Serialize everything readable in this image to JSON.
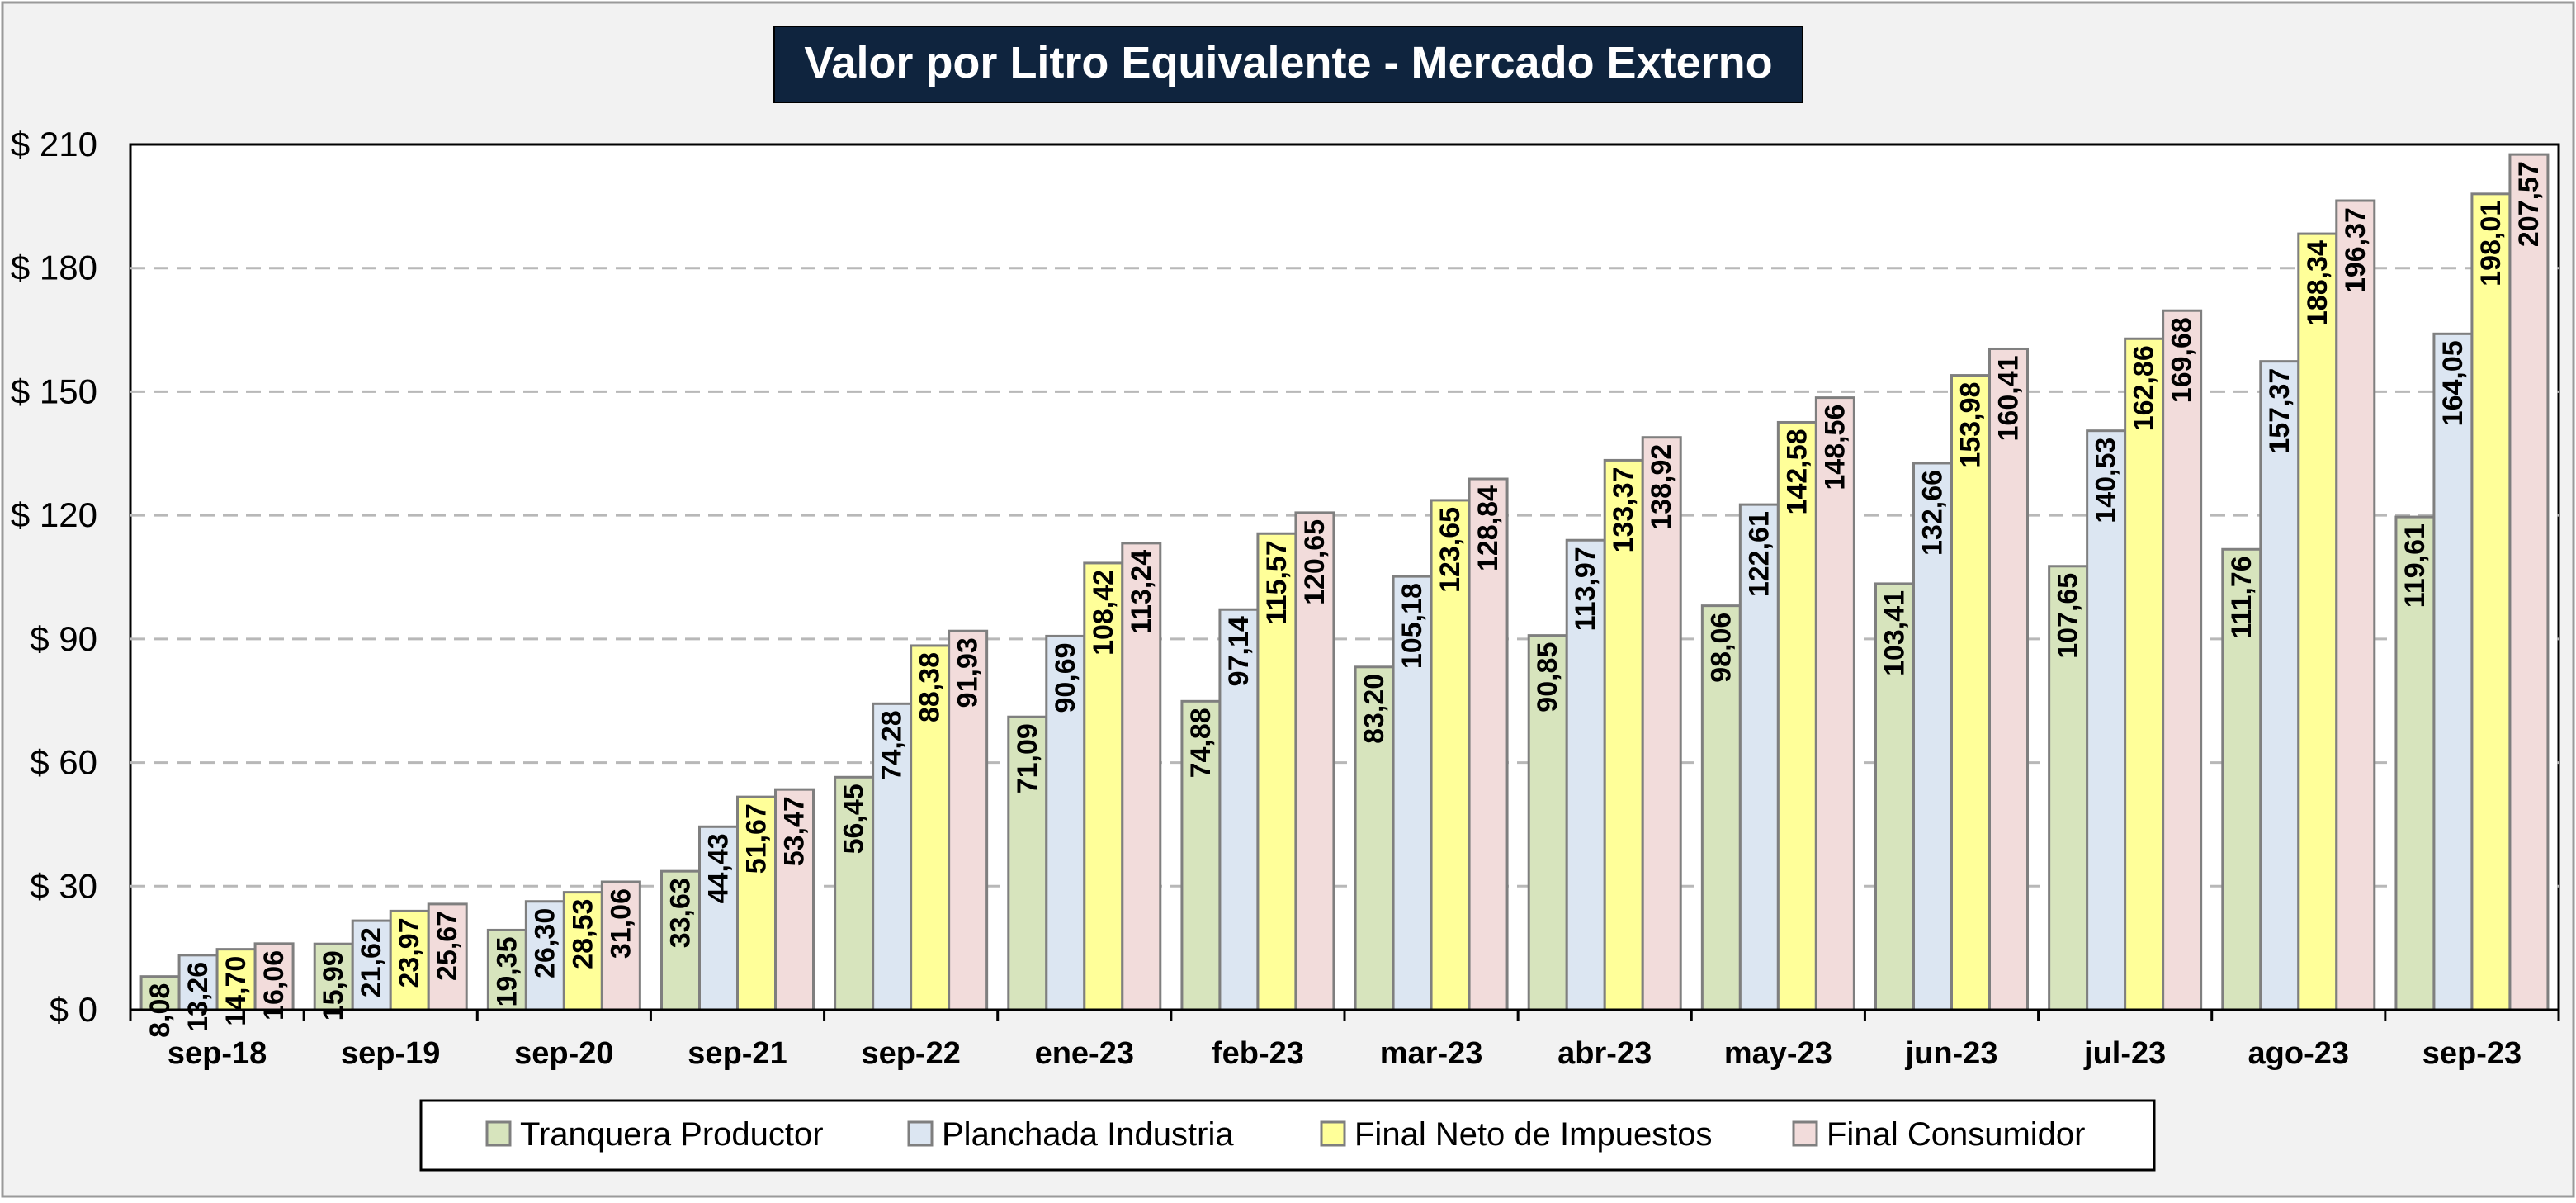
{
  "chart_data": {
    "type": "bar",
    "title": "Valor por Litro Equivalente - Mercado Externo",
    "xlabel": "",
    "ylabel": "",
    "ylim": [
      0,
      210
    ],
    "yticks": [
      0,
      30,
      60,
      90,
      120,
      150,
      180,
      210
    ],
    "ytick_labels": [
      "$ 0",
      "$ 30",
      "$ 60",
      "$ 90",
      "$ 120",
      "$ 150",
      "$ 180",
      "$ 210"
    ],
    "grid": "horizontal dashed",
    "legend_position": "bottom",
    "categories": [
      "sep-18",
      "sep-19",
      "sep-20",
      "sep-21",
      "sep-22",
      "ene-23",
      "feb-23",
      "mar-23",
      "abr-23",
      "may-23",
      "jun-23",
      "jul-23",
      "ago-23",
      "sep-23"
    ],
    "series": [
      {
        "name": "Tranquera Productor",
        "color": "#d7e4bd",
        "values": [
          8.08,
          15.99,
          19.35,
          33.63,
          56.45,
          71.09,
          74.88,
          83.2,
          90.85,
          98.06,
          103.41,
          107.65,
          111.76,
          119.61
        ],
        "labels": [
          "8,08",
          "15,99",
          "19,35",
          "33,63",
          "56,45",
          "71,09",
          "74,88",
          "83,20",
          "90,85",
          "98,06",
          "103,41",
          "107,65",
          "111,76",
          "119,61"
        ]
      },
      {
        "name": "Planchada Industria",
        "color": "#dce6f2",
        "values": [
          13.26,
          21.62,
          26.3,
          44.43,
          74.28,
          90.69,
          97.14,
          105.18,
          113.97,
          122.61,
          132.66,
          140.53,
          157.37,
          164.05
        ],
        "labels": [
          "13,26",
          "21,62",
          "26,30",
          "44,43",
          "74,28",
          "90,69",
          "97,14",
          "105,18",
          "113,97",
          "122,61",
          "132,66",
          "140,53",
          "157,37",
          "164,05"
        ]
      },
      {
        "name": "Final Neto de Impuestos",
        "color": "#ffff99",
        "values": [
          14.7,
          23.97,
          28.53,
          51.67,
          88.38,
          108.42,
          115.57,
          123.65,
          133.37,
          142.58,
          153.98,
          162.86,
          188.34,
          198.01
        ],
        "labels": [
          "14,70",
          "23,97",
          "28,53",
          "51,67",
          "88,38",
          "108,42",
          "115,57",
          "123,65",
          "133,37",
          "142,58",
          "153,98",
          "162,86",
          "188,34",
          "198,01"
        ]
      },
      {
        "name": "Final Consumidor",
        "color": "#f2dcdb",
        "values": [
          16.06,
          25.67,
          31.06,
          53.47,
          91.93,
          113.24,
          120.65,
          128.84,
          138.92,
          148.56,
          160.41,
          169.68,
          196.37,
          207.57
        ],
        "labels": [
          "16,06",
          "25,67",
          "31,06",
          "53,47",
          "91,93",
          "113,24",
          "120,65",
          "128,84",
          "138,92",
          "148,56",
          "160,41",
          "169,68",
          "196,37",
          "207,57"
        ]
      }
    ]
  },
  "colors": {
    "background": "#f2f2f2",
    "title_background": "#0f243e",
    "title_text": "#ffffff",
    "grid": "#b8b8b8",
    "bar_outline": "#7f7f7f"
  }
}
